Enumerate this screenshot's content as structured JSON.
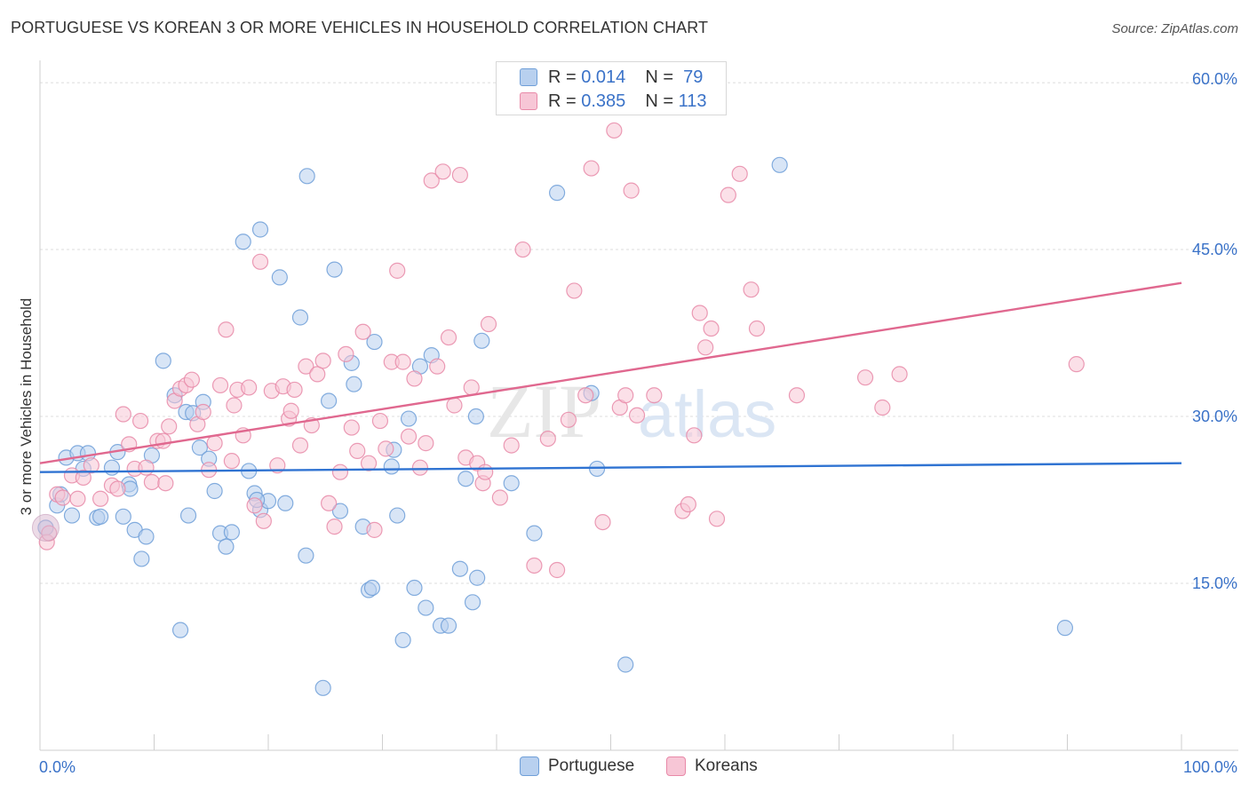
{
  "title": "PORTUGUESE VS KOREAN 3 OR MORE VEHICLES IN HOUSEHOLD CORRELATION CHART",
  "source": "Source: ZipAtlas.com",
  "watermark": {
    "zip": "ZIP",
    "atlas": "atlas"
  },
  "legend": {
    "rows": [
      {
        "r_label": "R =",
        "r_value": "0.014",
        "n_label": "N =",
        "n_value": "79"
      },
      {
        "r_label": "R =",
        "r_value": "0.385",
        "n_label": "N =",
        "n_value": "113"
      }
    ]
  },
  "bottom_legend": {
    "portuguese": "Portuguese",
    "koreans": "Koreans"
  },
  "chart_data": {
    "type": "scatter",
    "title": "PORTUGUESE VS KOREAN 3 OR MORE VEHICLES IN HOUSEHOLD CORRELATION CHART",
    "xlabel": "",
    "ylabel": "3 or more Vehicles in Household",
    "xlim": [
      0,
      100
    ],
    "ylim": [
      0,
      62
    ],
    "x_tick_labels": [
      "0.0%",
      "100.0%"
    ],
    "y_ticks": [
      {
        "value": 15,
        "label": "15.0%"
      },
      {
        "value": 30,
        "label": "30.0%"
      },
      {
        "value": 45,
        "label": "45.0%"
      },
      {
        "value": 60,
        "label": "60.0%"
      }
    ],
    "grid": true,
    "series": [
      {
        "name": "Portuguese",
        "color": "#6f9fd8",
        "fill": "#b8d0ef",
        "r": 0.014,
        "n": 79,
        "trend": {
          "x": [
            0,
            100
          ],
          "y": [
            25.0,
            25.8
          ]
        },
        "points": [
          [
            0.5,
            20.0
          ],
          [
            1.5,
            22.0
          ],
          [
            1.8,
            23.0
          ],
          [
            2.3,
            26.3
          ],
          [
            2.8,
            21.1
          ],
          [
            3.3,
            26.7
          ],
          [
            3.8,
            25.3
          ],
          [
            4.2,
            26.7
          ],
          [
            5.0,
            20.9
          ],
          [
            5.3,
            21.0
          ],
          [
            6.3,
            25.4
          ],
          [
            6.8,
            26.8
          ],
          [
            7.3,
            21.0
          ],
          [
            7.8,
            23.9
          ],
          [
            7.9,
            23.5
          ],
          [
            8.3,
            19.8
          ],
          [
            8.9,
            17.2
          ],
          [
            9.3,
            19.2
          ],
          [
            9.8,
            26.5
          ],
          [
            10.8,
            35.0
          ],
          [
            11.8,
            31.9
          ],
          [
            12.3,
            10.8
          ],
          [
            12.8,
            30.4
          ],
          [
            13.0,
            21.1
          ],
          [
            13.4,
            30.3
          ],
          [
            14.0,
            27.2
          ],
          [
            14.3,
            31.3
          ],
          [
            14.8,
            26.2
          ],
          [
            15.3,
            23.3
          ],
          [
            15.8,
            19.5
          ],
          [
            16.3,
            18.3
          ],
          [
            16.8,
            19.6
          ],
          [
            17.8,
            45.7
          ],
          [
            18.3,
            25.1
          ],
          [
            18.8,
            23.1
          ],
          [
            19.3,
            21.6
          ],
          [
            19.3,
            46.8
          ],
          [
            20.0,
            22.4
          ],
          [
            21.0,
            42.5
          ],
          [
            21.5,
            22.2
          ],
          [
            22.8,
            38.9
          ],
          [
            23.3,
            17.5
          ],
          [
            23.4,
            51.6
          ],
          [
            24.8,
            5.6
          ],
          [
            25.3,
            31.4
          ],
          [
            25.8,
            43.2
          ],
          [
            26.3,
            21.5
          ],
          [
            27.3,
            34.8
          ],
          [
            28.3,
            20.1
          ],
          [
            28.8,
            14.4
          ],
          [
            29.3,
            36.7
          ],
          [
            30.8,
            25.5
          ],
          [
            31.3,
            21.1
          ],
          [
            31.8,
            9.9
          ],
          [
            32.3,
            29.8
          ],
          [
            32.8,
            14.6
          ],
          [
            33.3,
            34.5
          ],
          [
            33.8,
            12.8
          ],
          [
            34.3,
            35.5
          ],
          [
            35.1,
            11.2
          ],
          [
            35.8,
            11.2
          ],
          [
            36.8,
            16.3
          ],
          [
            37.3,
            24.4
          ],
          [
            37.9,
            13.3
          ],
          [
            38.3,
            15.5
          ],
          [
            38.7,
            36.8
          ],
          [
            38.2,
            30.0
          ],
          [
            41.3,
            24.0
          ],
          [
            43.3,
            19.5
          ],
          [
            45.3,
            50.1
          ],
          [
            48.3,
            32.1
          ],
          [
            48.8,
            25.3
          ],
          [
            51.3,
            7.7
          ],
          [
            64.8,
            52.6
          ],
          [
            89.8,
            11.0
          ],
          [
            29.1,
            14.6
          ],
          [
            27.5,
            32.9
          ],
          [
            31.0,
            27.0
          ],
          [
            19.0,
            22.5
          ]
        ]
      },
      {
        "name": "Koreans",
        "color": "#e889a8",
        "fill": "#f7c6d6",
        "r": 0.385,
        "n": 113,
        "trend": {
          "x": [
            0,
            100
          ],
          "y": [
            25.8,
            42.0
          ]
        },
        "points": [
          [
            0.6,
            18.7
          ],
          [
            1.5,
            23.0
          ],
          [
            2.0,
            22.7
          ],
          [
            2.8,
            24.7
          ],
          [
            3.3,
            22.6
          ],
          [
            4.5,
            25.6
          ],
          [
            5.3,
            22.6
          ],
          [
            6.3,
            23.8
          ],
          [
            6.8,
            23.5
          ],
          [
            7.3,
            30.2
          ],
          [
            7.8,
            27.5
          ],
          [
            8.3,
            25.3
          ],
          [
            8.8,
            29.6
          ],
          [
            9.3,
            25.4
          ],
          [
            9.8,
            24.1
          ],
          [
            10.3,
            27.8
          ],
          [
            10.8,
            27.8
          ],
          [
            11.3,
            29.1
          ],
          [
            11.8,
            31.4
          ],
          [
            12.3,
            32.5
          ],
          [
            12.8,
            32.8
          ],
          [
            13.3,
            33.3
          ],
          [
            13.8,
            29.3
          ],
          [
            14.3,
            30.4
          ],
          [
            14.8,
            25.2
          ],
          [
            15.3,
            27.6
          ],
          [
            15.8,
            32.8
          ],
          [
            16.3,
            37.8
          ],
          [
            16.8,
            26.0
          ],
          [
            17.3,
            32.4
          ],
          [
            17.8,
            28.3
          ],
          [
            18.3,
            32.6
          ],
          [
            18.8,
            22.0
          ],
          [
            19.3,
            43.9
          ],
          [
            19.6,
            20.6
          ],
          [
            20.3,
            32.3
          ],
          [
            20.8,
            25.6
          ],
          [
            21.3,
            32.7
          ],
          [
            21.8,
            29.8
          ],
          [
            22.3,
            32.4
          ],
          [
            22.8,
            27.4
          ],
          [
            23.3,
            34.5
          ],
          [
            23.8,
            29.2
          ],
          [
            24.3,
            33.8
          ],
          [
            24.8,
            35.0
          ],
          [
            25.3,
            22.2
          ],
          [
            25.8,
            20.1
          ],
          [
            26.3,
            25.0
          ],
          [
            26.8,
            35.6
          ],
          [
            27.3,
            29.0
          ],
          [
            27.8,
            26.9
          ],
          [
            28.3,
            37.6
          ],
          [
            28.8,
            25.8
          ],
          [
            29.3,
            19.8
          ],
          [
            29.8,
            29.6
          ],
          [
            30.3,
            27.1
          ],
          [
            30.8,
            34.9
          ],
          [
            31.3,
            43.1
          ],
          [
            31.8,
            34.9
          ],
          [
            32.3,
            28.2
          ],
          [
            32.8,
            33.4
          ],
          [
            33.3,
            25.4
          ],
          [
            33.8,
            27.6
          ],
          [
            34.3,
            51.2
          ],
          [
            34.8,
            34.5
          ],
          [
            35.3,
            52.0
          ],
          [
            35.8,
            37.1
          ],
          [
            36.3,
            31.0
          ],
          [
            36.8,
            51.7
          ],
          [
            37.3,
            26.3
          ],
          [
            37.8,
            32.6
          ],
          [
            38.3,
            25.8
          ],
          [
            38.8,
            24.0
          ],
          [
            39.3,
            38.3
          ],
          [
            40.3,
            22.7
          ],
          [
            41.3,
            27.4
          ],
          [
            42.3,
            45.0
          ],
          [
            43.3,
            16.6
          ],
          [
            45.3,
            16.2
          ],
          [
            46.3,
            29.7
          ],
          [
            46.8,
            41.3
          ],
          [
            47.8,
            31.9
          ],
          [
            48.3,
            52.3
          ],
          [
            49.3,
            20.5
          ],
          [
            50.3,
            55.7
          ],
          [
            50.8,
            30.8
          ],
          [
            51.3,
            31.9
          ],
          [
            51.8,
            50.3
          ],
          [
            52.3,
            30.1
          ],
          [
            53.8,
            31.9
          ],
          [
            56.3,
            21.5
          ],
          [
            56.8,
            22.1
          ],
          [
            57.3,
            28.3
          ],
          [
            57.8,
            39.3
          ],
          [
            58.3,
            36.2
          ],
          [
            58.8,
            37.9
          ],
          [
            59.3,
            20.8
          ],
          [
            60.3,
            49.9
          ],
          [
            61.3,
            51.8
          ],
          [
            62.3,
            41.4
          ],
          [
            62.8,
            37.9
          ],
          [
            66.3,
            31.9
          ],
          [
            72.3,
            33.5
          ],
          [
            73.8,
            30.8
          ],
          [
            75.3,
            33.8
          ],
          [
            90.8,
            34.7
          ],
          [
            0.8,
            19.5
          ],
          [
            3.8,
            24.5
          ],
          [
            11.0,
            24.0
          ],
          [
            22.0,
            30.5
          ],
          [
            44.5,
            28.0
          ],
          [
            39.0,
            25.0
          ],
          [
            17.0,
            31.0
          ]
        ]
      }
    ]
  }
}
